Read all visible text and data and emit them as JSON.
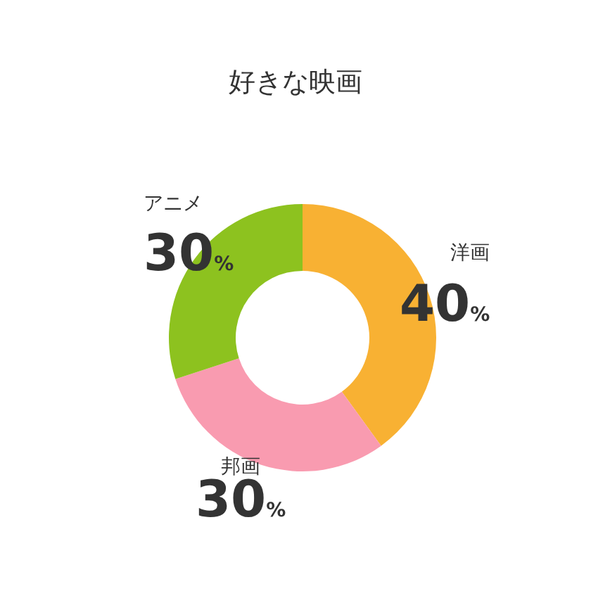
{
  "chart_data": {
    "type": "donut",
    "title": "好きな映画",
    "categories": [
      "洋画",
      "邦画",
      "アニメ"
    ],
    "values": [
      40,
      30,
      30
    ],
    "colors": [
      "#f8b133",
      "#f99bb0",
      "#8dc21f"
    ],
    "value_labels": [
      "40%",
      "30%",
      "30%"
    ],
    "legend": false
  }
}
